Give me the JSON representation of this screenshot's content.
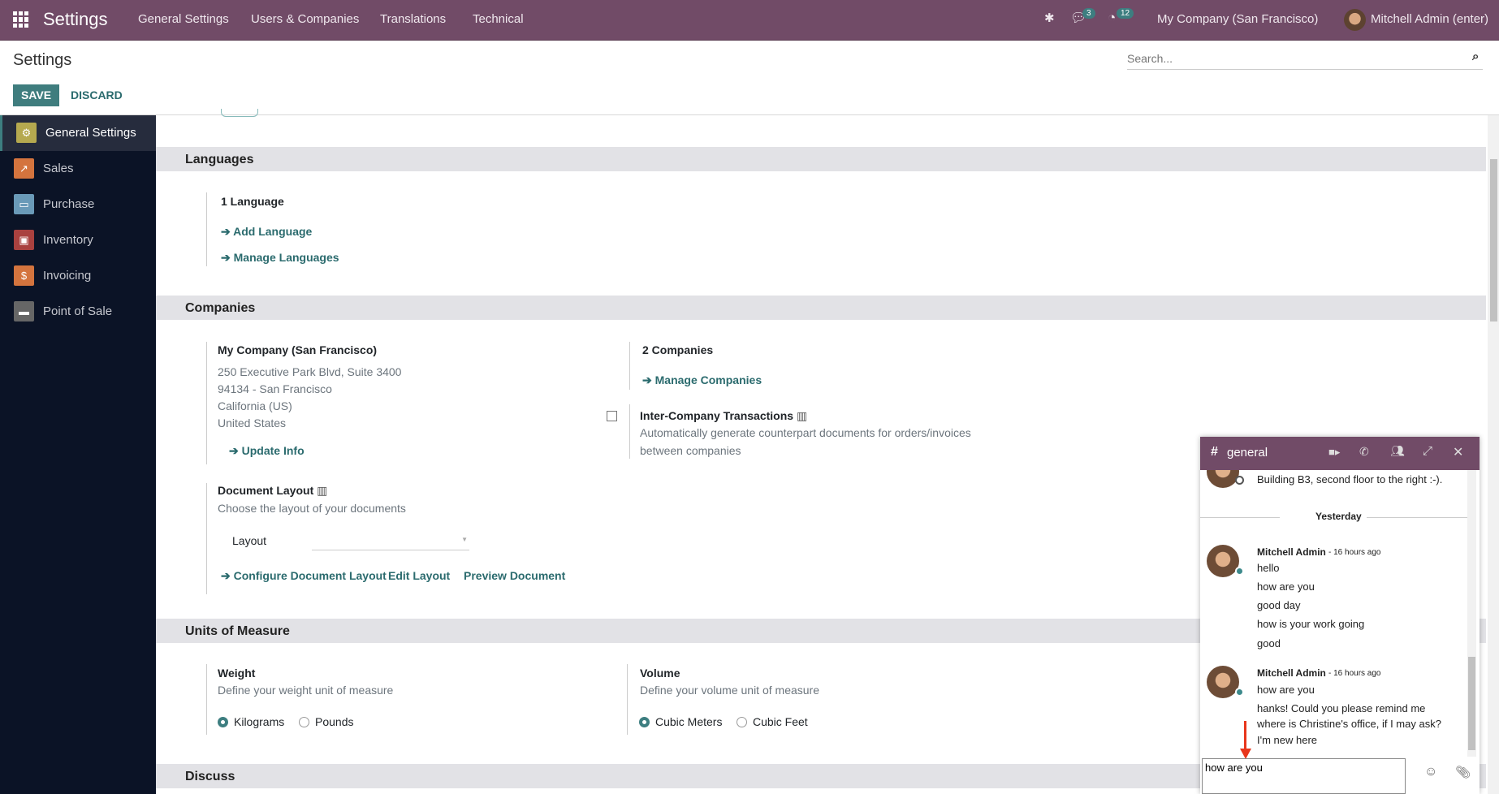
{
  "navbar": {
    "app_title": "Settings",
    "menu": [
      "General Settings",
      "Users & Companies",
      "Translations",
      "Technical"
    ],
    "messages_count": "3",
    "activities_count": "12",
    "company": "My Company (San Francisco)",
    "user": "Mitchell Admin (enter)",
    "color": "#714B67"
  },
  "control_panel": {
    "title": "Settings",
    "search_placeholder": "Search...",
    "save_label": "SAVE",
    "discard_label": "DISCARD"
  },
  "sidebar": {
    "items": [
      {
        "label": "General Settings",
        "icon": "gear-icon",
        "color": "#b5a94f"
      },
      {
        "label": "Sales",
        "icon": "chart-icon",
        "color": "#d4743e"
      },
      {
        "label": "Purchase",
        "icon": "credit-card-icon",
        "color": "#6a9ab8"
      },
      {
        "label": "Inventory",
        "icon": "box-icon",
        "color": "#a9413f"
      },
      {
        "label": "Invoicing",
        "icon": "invoice-icon",
        "color": "#d4743e"
      },
      {
        "label": "Point of Sale",
        "icon": "store-icon",
        "color": "#666666"
      }
    ]
  },
  "languages": {
    "title": "Languages",
    "count": "1 Language",
    "add": "Add Language",
    "manage": "Manage Languages"
  },
  "companies": {
    "title": "Companies",
    "company_name": "My Company (San Francisco)",
    "address": [
      "250 Executive Park Blvd, Suite 3400",
      "94134 - San Francisco",
      "California (US)",
      "United States"
    ],
    "update": "Update Info",
    "count": "2 Companies",
    "manage": "Manage Companies",
    "inter_title": "Inter-Company Transactions",
    "inter_desc_1": "Automatically generate counterpart documents for orders/invoices",
    "inter_desc_2": "between companies",
    "inter_checked": false,
    "doc_title": "Document Layout",
    "doc_desc": "Choose the layout of your documents",
    "layout_label": "Layout",
    "layout_value": "",
    "configure": "Configure Document Layout",
    "edit": "Edit Layout",
    "preview": "Preview Document"
  },
  "uom": {
    "title": "Units of Measure",
    "weight_title": "Weight",
    "weight_desc": "Define your weight unit of measure",
    "weight_options": [
      "Kilograms",
      "Pounds"
    ],
    "weight_selected": "Kilograms",
    "volume_title": "Volume",
    "volume_desc": "Define your volume unit of measure",
    "volume_options": [
      "Cubic Meters",
      "Cubic Feet"
    ],
    "volume_selected": "Cubic Meters"
  },
  "discuss": {
    "title": "Discuss"
  },
  "chat": {
    "channel": "general",
    "prev_message": "Building B3, second floor to the right :-).",
    "separator": "Yesterday",
    "messages": [
      {
        "author": "Mitchell Admin",
        "time": "- 16 hours ago",
        "lines": [
          "hello",
          "how are you",
          "good day",
          "how is your work going",
          "good"
        ]
      },
      {
        "author": "Mitchell Admin",
        "time": "- 16 hours ago",
        "lines": [
          "how are you",
          "hanks! Could you please remind me",
          "where is Christine's office, if I may ask?",
          "I'm new here"
        ]
      }
    ],
    "composer_value": "how are you"
  }
}
